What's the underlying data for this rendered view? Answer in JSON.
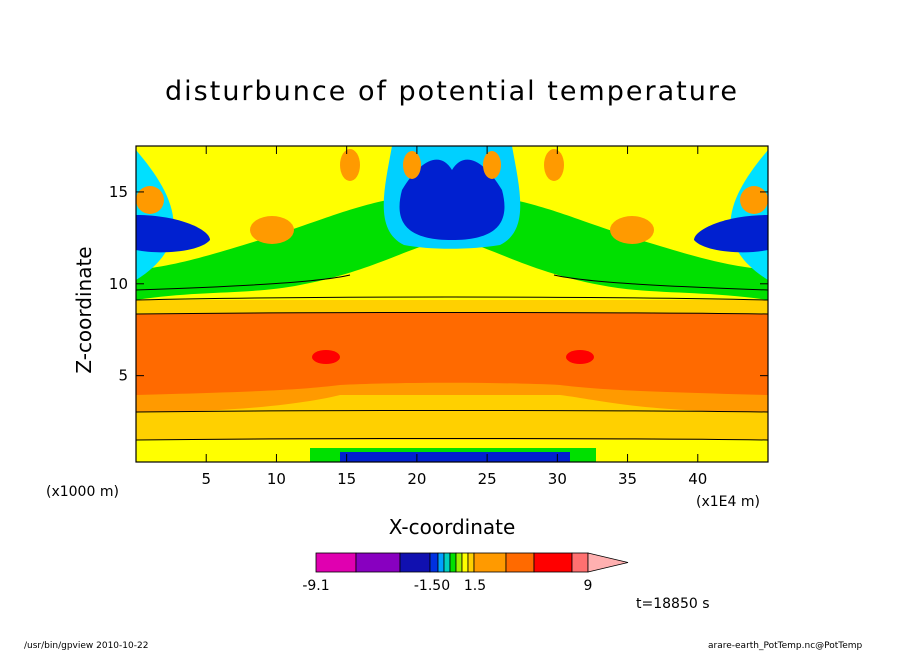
{
  "chart_data": {
    "type": "heatmap",
    "title": "disturbunce of potential temperature",
    "xlabel": "X-coordinate",
    "ylabel": "Z-coordinate",
    "x_unit_left": "(x1000 m)",
    "x_unit_right": "(x1E4 m)",
    "xlim": [
      0,
      45
    ],
    "ylim": [
      0.3,
      17.5
    ],
    "xticks": [
      "5",
      "10",
      "15",
      "20",
      "25",
      "30",
      "35",
      "40"
    ],
    "xtick_values": [
      5,
      10,
      15,
      20,
      25,
      30,
      35,
      40
    ],
    "yticks": [
      "5",
      "10",
      "15"
    ],
    "ytick_values": [
      5,
      10,
      15
    ],
    "colorbar": {
      "labels": [
        "-9.1",
        "-1.50",
        "1.5",
        "9"
      ],
      "colors": [
        "#e000b0",
        "#8800c0",
        "#1010b0",
        "#0030e0",
        "#00a0ff",
        "#00d0c0",
        "#00e000",
        "#a0f000",
        "#ffff00",
        "#ffd000",
        "#ff9a00",
        "#ff6a00",
        "#ff0000",
        "#ff7070",
        "#ffb0b0"
      ]
    },
    "time_label": "t=18850 s"
  },
  "footer": {
    "left": "/usr/bin/gpview   2010-10-22",
    "right": "arare-earth_PotTemp.nc@PotTemp"
  }
}
